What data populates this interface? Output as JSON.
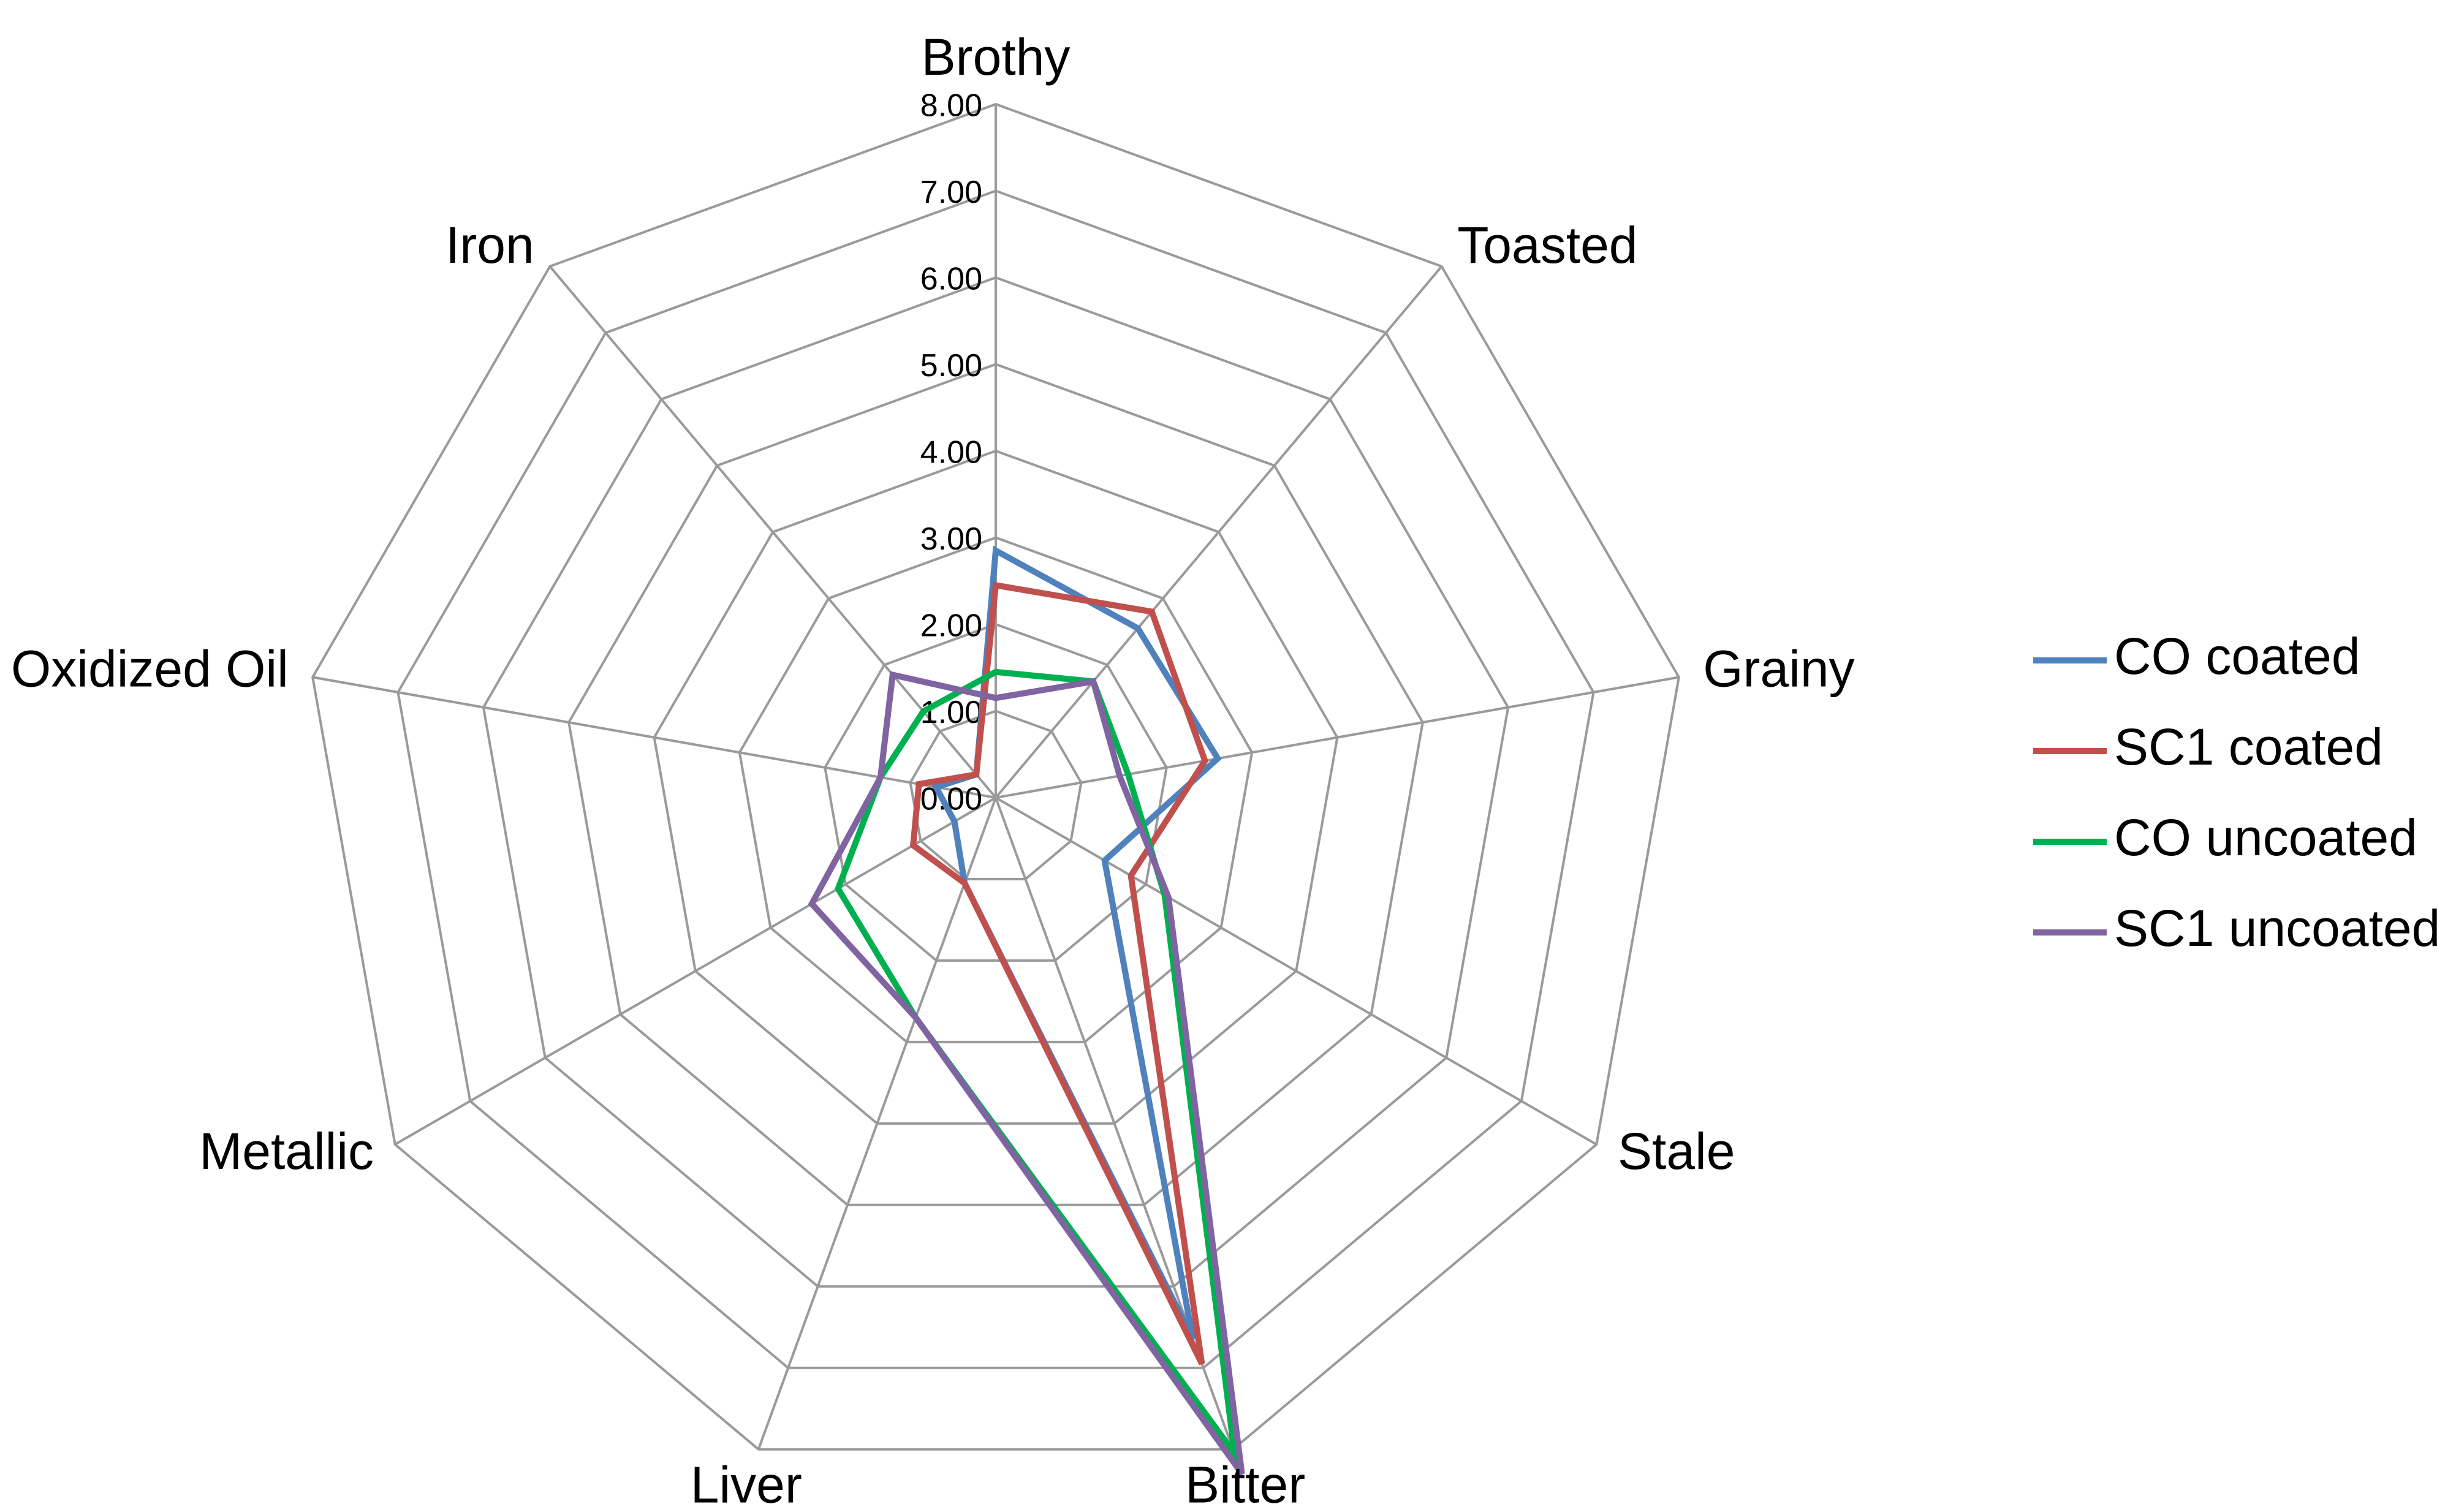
{
  "chart_data": {
    "type": "radar",
    "title": "",
    "categories": [
      "Brothy",
      "Toasted",
      "Grainy",
      "Stale",
      "Bitter",
      "Liver",
      "Metallic",
      "Oxidized Oil",
      "Iron"
    ],
    "range": [
      0,
      8
    ],
    "tick_values": [
      0,
      1,
      2,
      3,
      4,
      5,
      6,
      7,
      8
    ],
    "tick_labels": [
      "0.00",
      "1.00",
      "2.00",
      "3.00",
      "4.00",
      "5.00",
      "6.00",
      "7.00",
      "8.00"
    ],
    "grid": true,
    "legend_position": "right",
    "series": [
      {
        "name": "CO coated",
        "color": "#4F81BD",
        "values": [
          2.85,
          2.55,
          2.6,
          1.45,
          6.65,
          1.05,
          0.55,
          0.7,
          0.35
        ]
      },
      {
        "name": "SC1 coated",
        "color": "#C0504D",
        "values": [
          2.45,
          2.8,
          2.45,
          1.8,
          6.95,
          1.05,
          1.1,
          0.9,
          0.35
        ]
      },
      {
        "name": "CO uncoated",
        "color": "#00B050",
        "values": [
          1.45,
          1.75,
          1.55,
          2.25,
          8.05,
          2.7,
          2.1,
          1.35,
          1.3
        ]
      },
      {
        "name": "SC1 uncoated",
        "color": "#8064A2",
        "values": [
          1.15,
          1.75,
          1.45,
          2.3,
          8.3,
          2.7,
          2.45,
          1.35,
          1.85
        ]
      }
    ]
  }
}
